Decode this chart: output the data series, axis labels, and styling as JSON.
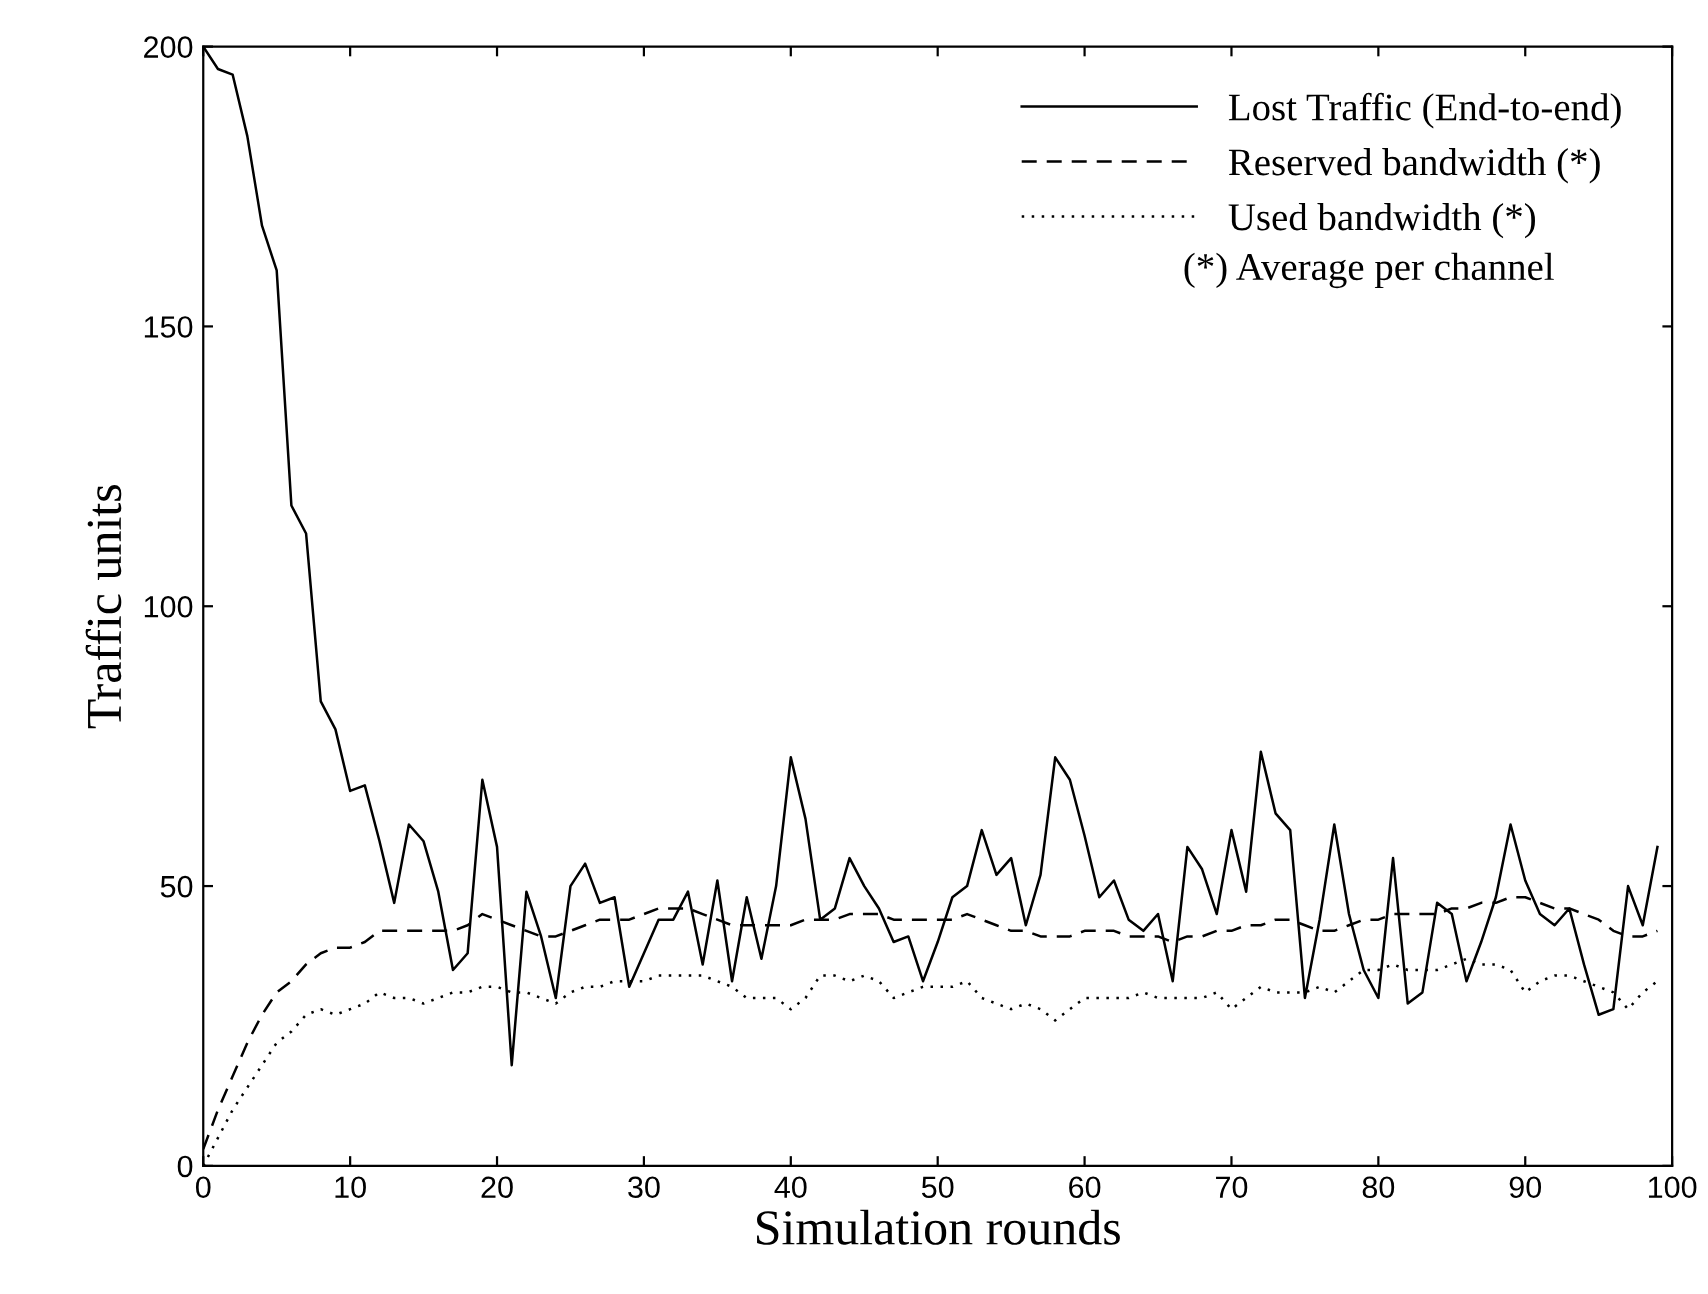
{
  "chart_data": {
    "type": "line",
    "xlabel": "Simulation rounds",
    "ylabel": "Traffic units",
    "x": [
      0,
      1,
      2,
      3,
      4,
      5,
      6,
      7,
      8,
      9,
      10,
      11,
      12,
      13,
      14,
      15,
      16,
      17,
      18,
      19,
      20,
      21,
      22,
      23,
      24,
      25,
      26,
      27,
      28,
      29,
      30,
      31,
      32,
      33,
      34,
      35,
      36,
      37,
      38,
      39,
      40,
      41,
      42,
      43,
      44,
      45,
      46,
      47,
      48,
      49,
      50,
      51,
      52,
      53,
      54,
      55,
      56,
      57,
      58,
      59,
      60,
      61,
      62,
      63,
      64,
      65,
      66,
      67,
      68,
      69,
      70,
      71,
      72,
      73,
      74,
      75,
      76,
      77,
      78,
      79,
      80,
      81,
      82,
      83,
      84,
      85,
      86,
      87,
      88,
      89,
      90,
      91,
      92,
      93,
      94,
      95,
      96,
      97,
      98,
      99
    ],
    "series": [
      {
        "name": "Lost Traffic (End-to-end)",
        "color": "#000000",
        "line_style": "solid",
        "values": [
          200,
          196,
          195,
          184,
          168,
          160,
          118,
          113,
          83,
          78,
          67,
          68,
          58,
          47,
          61,
          58,
          49,
          35,
          38,
          69,
          57,
          18,
          49,
          41,
          30,
          50,
          54,
          47,
          48,
          32,
          38,
          44,
          44,
          49,
          36,
          51,
          33,
          48,
          37,
          50,
          73,
          62,
          44,
          46,
          55,
          50,
          46,
          40,
          41,
          33,
          40,
          48,
          50,
          60,
          52,
          55,
          43,
          52,
          73,
          69,
          59,
          48,
          51,
          44,
          42,
          45,
          33,
          57,
          53,
          45,
          60,
          49,
          74,
          63,
          60,
          30,
          44,
          61,
          45,
          35,
          30,
          55,
          29,
          31,
          47,
          45,
          33,
          40,
          48,
          61,
          51,
          45,
          43,
          46,
          36,
          27,
          28,
          50,
          43,
          57
        ]
      },
      {
        "name": "Reserved bandwidth (*)",
        "color": "#000000",
        "line_style": "dashed",
        "values": [
          3,
          10,
          16,
          22,
          27,
          31,
          33,
          36,
          38,
          39,
          39,
          40,
          42,
          42,
          42,
          42,
          42,
          42,
          43,
          45,
          44,
          43,
          42,
          41,
          41,
          42,
          43,
          44,
          44,
          44,
          45,
          46,
          46,
          46,
          45,
          44,
          43,
          43,
          43,
          43,
          43,
          44,
          44,
          44,
          45,
          45,
          45,
          44,
          44,
          44,
          44,
          44,
          45,
          44,
          43,
          42,
          42,
          41,
          41,
          41,
          42,
          42,
          42,
          41,
          41,
          41,
          40,
          41,
          41,
          42,
          42,
          43,
          43,
          44,
          44,
          43,
          42,
          42,
          43,
          44,
          44,
          45,
          45,
          45,
          45,
          46,
          46,
          47,
          47,
          48,
          48,
          47,
          46,
          46,
          45,
          44,
          42,
          41,
          41,
          42
        ]
      },
      {
        "name": "Used bandwidth (*)",
        "color": "#000000",
        "line_style": "dotted",
        "values": [
          0,
          5,
          10,
          14,
          18,
          22,
          24,
          27,
          28,
          27,
          28,
          29,
          31,
          30,
          30,
          29,
          30,
          31,
          31,
          32,
          32,
          31,
          31,
          30,
          29,
          31,
          32,
          32,
          33,
          33,
          33,
          34,
          34,
          34,
          34,
          33,
          32,
          30,
          30,
          30,
          28,
          30,
          34,
          34,
          33,
          34,
          33,
          30,
          31,
          32,
          32,
          32,
          33,
          30,
          29,
          28,
          29,
          28,
          26,
          28,
          30,
          30,
          30,
          30,
          31,
          30,
          30,
          30,
          30,
          31,
          28,
          30,
          32,
          31,
          31,
          31,
          32,
          31,
          33,
          35,
          35,
          36,
          35,
          35,
          35,
          36,
          37,
          36,
          36,
          35,
          31,
          33,
          34,
          34,
          33,
          32,
          31,
          28,
          31,
          33
        ]
      }
    ],
    "annotations": [
      "(*) Average per channel"
    ],
    "xlim": [
      0,
      100
    ],
    "xticks": [
      0,
      10,
      20,
      30,
      40,
      50,
      60,
      70,
      80,
      90,
      100
    ],
    "ylim": [
      0,
      200
    ],
    "yticks": [
      0,
      50,
      100,
      150,
      200
    ],
    "grid": false,
    "legend": "top right",
    "marker": "none"
  }
}
